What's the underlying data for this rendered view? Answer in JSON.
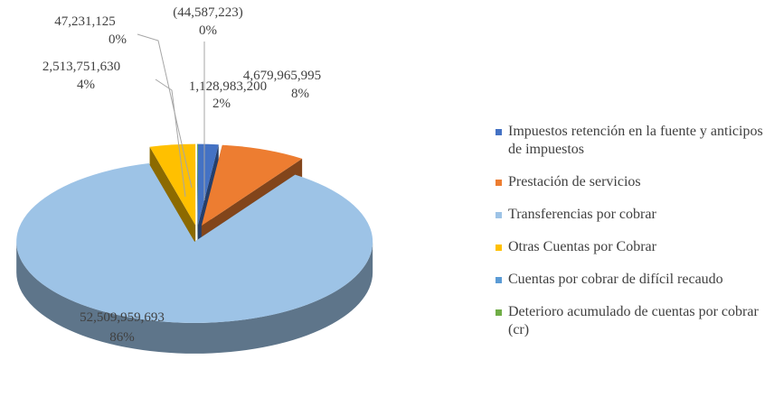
{
  "chart_data": {
    "type": "pie3d",
    "categories": [
      "Impuestos retención en la fuente y anticipos de impuestos",
      "Prestación de servicios",
      "Transferencias por cobrar",
      "Otras Cuentas por Cobrar",
      "Cuentas por cobrar de difícil recaudo",
      "Deterioro acumulado de cuentas por cobrar (cr)"
    ],
    "values": [
      1128983200,
      4679965995,
      52509959693,
      2513751630,
      47231125,
      -44587223
    ],
    "value_labels": [
      "1,128,983,200",
      "4,679,965,995",
      "52,509,959,693",
      "2,513,751,630",
      "47,231,125",
      "(44,587,223)"
    ],
    "percent_labels": [
      "2%",
      "8%",
      "86%",
      "4%",
      "0%",
      "0%"
    ],
    "colors": [
      "#4472c4",
      "#ed7d31",
      "#9dc3e6",
      "#ffc000",
      "#5b9bd5",
      "#70ad47"
    ],
    "legend": "right"
  }
}
